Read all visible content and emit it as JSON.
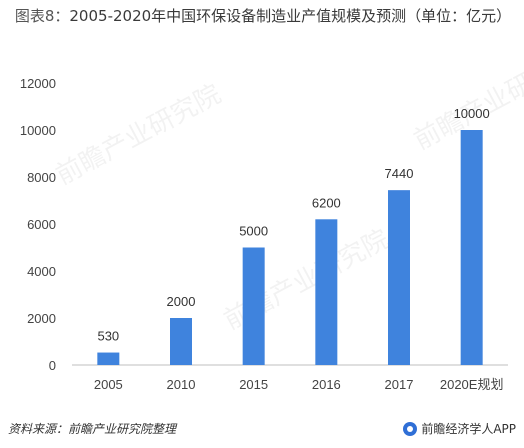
{
  "title": {
    "label": "图表8：",
    "text": "2005-2020年中国环保设备制造业产值规模及预测（单位：亿元）"
  },
  "chart_data": {
    "type": "bar",
    "categories": [
      "2005",
      "2010",
      "2015",
      "2016",
      "2017",
      "2020E规划"
    ],
    "values": [
      530,
      2000,
      5000,
      6200,
      7440,
      10000
    ],
    "data_labels": [
      "530",
      "2000",
      "5000",
      "6200",
      "7440",
      "10000"
    ],
    "ylim": [
      0,
      12000
    ],
    "yticks": [
      0,
      2000,
      4000,
      6000,
      8000,
      10000,
      12000
    ],
    "grid": false,
    "bar_color": "#3f83dd"
  },
  "footer": {
    "source": "资料来源：前瞻产业研究院整理",
    "brand": "前瞻经济学人APP"
  },
  "watermark": "前瞻产业研究院"
}
